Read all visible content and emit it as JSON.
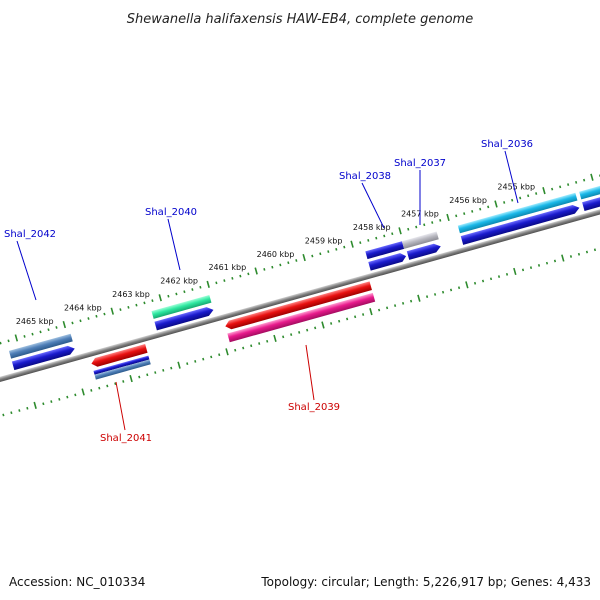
{
  "title": "Shewanella halifaxensis HAW-EB4, complete genome",
  "footer": {
    "accession": "Accession: NC_010334",
    "summary": "Topology: circular; Length: 5,226,917 bp; Genes: 4,433"
  },
  "colors": {
    "backbone": "#808080",
    "ruler": "#2e8b2e",
    "label_forward": "#0000cc",
    "label_reverse": "#cc0000",
    "leader_forward": "#0000cc",
    "leader_reverse": "#cc0000"
  },
  "ruler": {
    "upper_labels": [
      "2465 kbp",
      "2464 kbp",
      "2463 kbp",
      "2462 kbp",
      "2461 kbp",
      "2460 kbp",
      "2459 kbp",
      "2458 kbp",
      "2457 kbp",
      "2456 kbp",
      "2455 kbp"
    ]
  },
  "genes": [
    {
      "label": "Shal_2042",
      "strand": "forward",
      "color": "#4f7fb8"
    },
    {
      "label": "Shal_2040",
      "strand": "forward",
      "color": "#2ee8a0"
    },
    {
      "label": "Shal_2038",
      "strand": "forward",
      "color": "#1a1acc"
    },
    {
      "label": "Shal_2037",
      "strand": "forward",
      "color": "#b8b8c0"
    },
    {
      "label": "Shal_2036",
      "strand": "forward",
      "color": "#1ab8e8"
    },
    {
      "label": "Shal_2041",
      "strand": "reverse",
      "color": "#e81010"
    },
    {
      "label": "Shal_2039",
      "strand": "reverse",
      "color": "#e81a8c"
    }
  ]
}
